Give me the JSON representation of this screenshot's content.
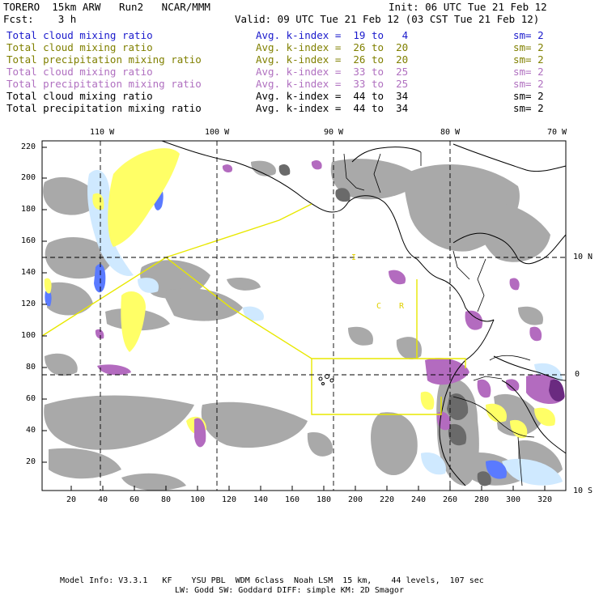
{
  "header": {
    "model": "TORERO  15km ARW   Run2   NCAR/MMM",
    "init": "Init: 06 UTC Tue 21 Feb 12",
    "fcst": "Fcst:    3 h",
    "valid": "Valid: 09 UTC Tue 21 Feb 12 (03 CST Tue 21 Feb 12)"
  },
  "legend": [
    {
      "label": "Total cloud mixing ratio",
      "stat": "Avg. k-index =  19 to   4",
      "sm": "sm= 2",
      "color": "#1a1acc"
    },
    {
      "label": "Total cloud mixing ratio",
      "stat": "Avg. k-index =  26 to  20",
      "sm": "sm= 2",
      "color": "#808000"
    },
    {
      "label": "Total precipitation mixing ratio",
      "stat": "Avg. k-index =  26 to  20",
      "sm": "sm= 2",
      "color": "#808000"
    },
    {
      "label": "Total cloud mixing ratio",
      "stat": "Avg. k-index =  33 to  25",
      "sm": "sm= 2",
      "color": "#b070c0"
    },
    {
      "label": "Total precipitation mixing ratio",
      "stat": "Avg. k-index =  33 to  25",
      "sm": "sm= 2",
      "color": "#b070c0"
    },
    {
      "label": "Total cloud mixing ratio",
      "stat": "Avg. k-index =  44 to  34",
      "sm": "sm= 2",
      "color": "#000000"
    },
    {
      "label": "Total precipitation mixing ratio",
      "stat": "Avg. k-index =  44 to  34",
      "sm": "sm= 2",
      "color": "#000000"
    }
  ],
  "axes": {
    "top_lon": [
      "110 W",
      "100 W",
      "90 W",
      "80 W",
      "70 W"
    ],
    "right_lat": [
      "10 N",
      "0",
      "10 S"
    ],
    "left_y": [
      "220",
      "200",
      "180",
      "160",
      "140",
      "120",
      "100",
      "80",
      "60",
      "40",
      "20"
    ],
    "bottom_x": [
      "20",
      "40",
      "60",
      "80",
      "100",
      "120",
      "140",
      "160",
      "180",
      "200",
      "220",
      "240",
      "260",
      "280",
      "300",
      "320"
    ]
  },
  "map_labels": {
    "label_1": "I",
    "label_2": "C",
    "label_3": "R"
  },
  "footer": {
    "line1": "Model Info: V3.3.1   KF    YSU PBL  WDM 6class  Noah LSM  15 km,    44 levels,  107 sec",
    "line2": "LW: Godd SW: Goddard DIFF: simple KM: 2D Smagor"
  },
  "colors": {
    "gray": "#9e9e9e",
    "yellow": "#ffff66",
    "purple": "#b36bbf",
    "lightblue": "#cce8ff",
    "blue": "#4060ff"
  }
}
